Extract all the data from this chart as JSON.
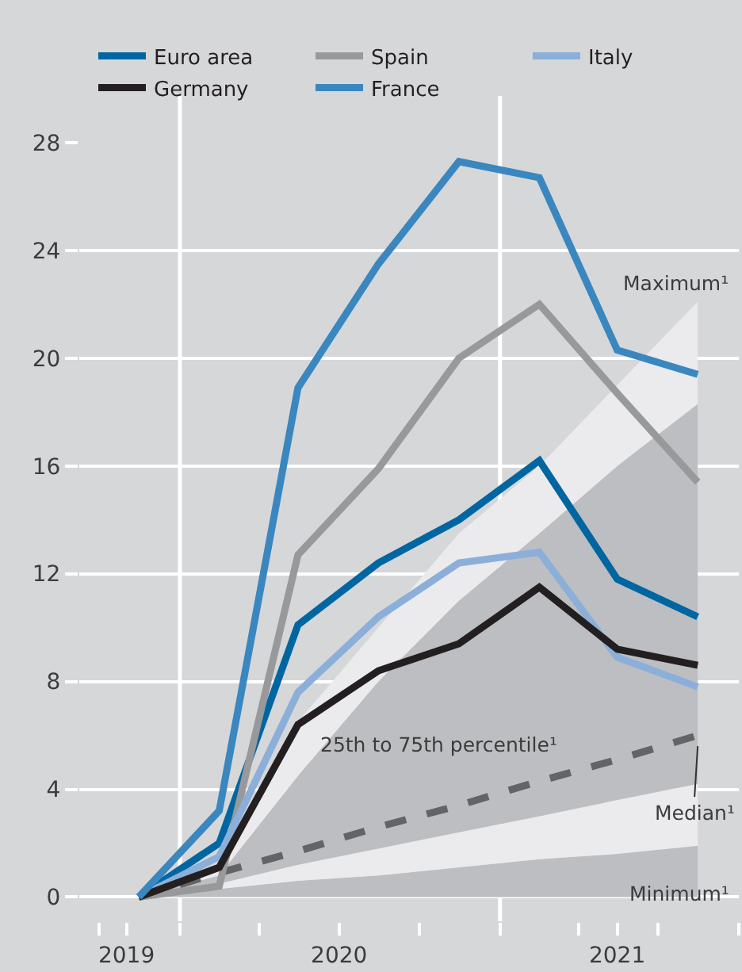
{
  "chart_data": {
    "type": "line",
    "x": [
      "2019-11-15",
      "2020-02-15",
      "2020-05-15",
      "2020-08-15",
      "2020-11-15",
      "2021-02-15",
      "2021-05-15",
      "2021-08-15"
    ],
    "series": [
      {
        "type": "area",
        "color": "#bdbec1",
        "values": [
          0,
          0.3,
          0.6,
          0.8,
          1.1,
          1.4,
          1.6,
          1.9
        ]
      },
      {
        "type": "area",
        "color": "#ebebed",
        "values": [
          0,
          0.5,
          1.2,
          1.8,
          2.4,
          3.0,
          3.6,
          4.2
        ]
      },
      {
        "type": "area",
        "color": "#bdbec1",
        "values": [
          0,
          0.8,
          4.5,
          8.0,
          11.0,
          13.5,
          16.0,
          18.3
        ]
      },
      {
        "type": "area",
        "color": "#ebebed",
        "values": [
          0,
          1.0,
          6.5,
          10.0,
          13.5,
          16.0,
          19.0,
          22.1
        ]
      },
      {
        "type": "line",
        "color": "#636466",
        "line_style": "dashed",
        "values": [
          0,
          0.9,
          1.7,
          2.6,
          3.4,
          4.3,
          5.1,
          6.0
        ]
      },
      {
        "name": "Euro area",
        "color": "#0066a1",
        "values": [
          0,
          2.0,
          10.1,
          12.4,
          14.0,
          16.2,
          11.8,
          10.4
        ]
      },
      {
        "name": "Spain",
        "color": "#98999b",
        "values": [
          0,
          0.4,
          12.7,
          15.9,
          20.0,
          22.0,
          18.7,
          15.4
        ]
      },
      {
        "name": "Italy",
        "color": "#8bafd9",
        "values": [
          0,
          1.5,
          7.6,
          10.4,
          12.4,
          12.8,
          8.9,
          7.8
        ]
      },
      {
        "name": "Germany",
        "color": "#231f20",
        "values": [
          0,
          1.1,
          6.4,
          8.4,
          9.4,
          11.5,
          9.2,
          8.6
        ]
      },
      {
        "name": "France",
        "color": "#3a87bf",
        "values": [
          0,
          3.2,
          18.9,
          23.5,
          27.3,
          26.7,
          20.3,
          19.4
        ]
      }
    ],
    "xlim": [
      "2019-09-08",
      "2021-10-01"
    ],
    "xticks": [
      {
        "value": "2019-11-01",
        "label": "2019"
      },
      {
        "value": "2020-07-01",
        "label": "2020"
      },
      {
        "value": "2021-05-15",
        "label": "2021"
      },
      {
        "value": "2019-10-01",
        "label": null
      },
      {
        "value": "2020-01-01",
        "label": null
      },
      {
        "value": "2020-04-01",
        "label": null
      },
      {
        "value": "2020-10-01",
        "label": null
      },
      {
        "value": "2021-01-01",
        "label": null
      },
      {
        "value": "2021-04-01",
        "label": null
      },
      {
        "value": "2021-07-01",
        "label": null
      },
      {
        "value": "2021-10-01",
        "label": null
      }
    ],
    "ylim": [
      -0.9,
      28
    ],
    "yticks": [
      0,
      4,
      8,
      12,
      16,
      20,
      24,
      28
    ],
    "grid": "y",
    "ref_lines": [
      {
        "axis": "x",
        "value": "2020-01-01",
        "color": "#ffffff"
      },
      {
        "axis": "x",
        "value": "2021-01-01",
        "color": "#ffffff"
      }
    ],
    "annotations": [
      "Maximum¹",
      "25th to 75th percentile¹",
      {
        "text": "Median¹",
        "x": "2021-08-15",
        "y": 5.6
      },
      "Minimum¹"
    ],
    "legend": "top left"
  }
}
